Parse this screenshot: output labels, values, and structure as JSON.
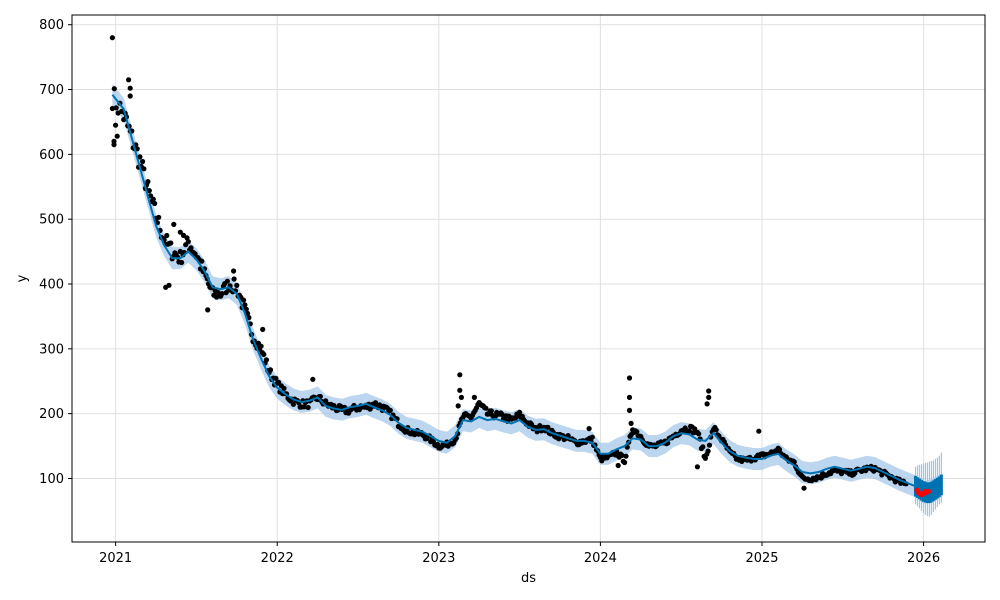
{
  "chart_data": {
    "type": "line",
    "xlabel": "ds",
    "ylabel": "y",
    "grid": true,
    "xlim": [
      2020.73,
      2026.38
    ],
    "ylim": [
      2,
      815
    ],
    "x_ticks": [
      2021,
      2022,
      2023,
      2024,
      2025,
      2026
    ],
    "x_tick_labels": [
      "2021",
      "2022",
      "2023",
      "2024",
      "2025",
      "2026"
    ],
    "y_ticks": [
      100,
      200,
      300,
      400,
      500,
      600,
      700,
      800
    ],
    "y_tick_labels": [
      "100",
      "200",
      "300",
      "400",
      "500",
      "600",
      "700",
      "800"
    ],
    "colors": {
      "observed": "#000000",
      "forecast_line": "#0072B2",
      "uncertainty_band": "#9fc5e8",
      "recent_actuals": "#ff0000",
      "grid": "#e0e0e0"
    },
    "observed_trend": [
      [
        2020.98,
        690
      ],
      [
        2021.05,
        660
      ],
      [
        2021.1,
        625
      ],
      [
        2021.15,
        590
      ],
      [
        2021.2,
        545
      ],
      [
        2021.25,
        505
      ],
      [
        2021.3,
        470
      ],
      [
        2021.35,
        450
      ],
      [
        2021.4,
        440
      ],
      [
        2021.45,
        465
      ],
      [
        2021.5,
        445
      ],
      [
        2021.55,
        415
      ],
      [
        2021.6,
        385
      ],
      [
        2021.65,
        385
      ],
      [
        2021.7,
        400
      ],
      [
        2021.75,
        395
      ],
      [
        2021.8,
        360
      ],
      [
        2021.85,
        320
      ],
      [
        2021.9,
        300
      ],
      [
        2021.95,
        265
      ],
      [
        2022.0,
        245
      ],
      [
        2022.05,
        230
      ],
      [
        2022.1,
        220
      ],
      [
        2022.15,
        215
      ],
      [
        2022.2,
        215
      ],
      [
        2022.25,
        225
      ],
      [
        2022.3,
        215
      ],
      [
        2022.35,
        210
      ],
      [
        2022.4,
        205
      ],
      [
        2022.45,
        205
      ],
      [
        2022.5,
        210
      ],
      [
        2022.55,
        210
      ],
      [
        2022.6,
        215
      ],
      [
        2022.65,
        210
      ],
      [
        2022.7,
        200
      ],
      [
        2022.75,
        185
      ],
      [
        2022.8,
        175
      ],
      [
        2022.85,
        170
      ],
      [
        2022.9,
        168
      ],
      [
        2022.95,
        160
      ],
      [
        2023.0,
        150
      ],
      [
        2023.05,
        152
      ],
      [
        2023.1,
        160
      ],
      [
        2023.15,
        195
      ],
      [
        2023.2,
        195
      ],
      [
        2023.25,
        215
      ],
      [
        2023.3,
        200
      ],
      [
        2023.35,
        198
      ],
      [
        2023.4,
        195
      ],
      [
        2023.45,
        190
      ],
      [
        2023.5,
        198
      ],
      [
        2023.55,
        185
      ],
      [
        2023.6,
        175
      ],
      [
        2023.65,
        180
      ],
      [
        2023.7,
        170
      ],
      [
        2023.75,
        165
      ],
      [
        2023.8,
        162
      ],
      [
        2023.85,
        155
      ],
      [
        2023.9,
        158
      ],
      [
        2023.95,
        160
      ],
      [
        2024.0,
        130
      ],
      [
        2024.05,
        133
      ],
      [
        2024.1,
        140
      ],
      [
        2024.15,
        128
      ],
      [
        2024.2,
        178
      ],
      [
        2024.25,
        165
      ],
      [
        2024.3,
        150
      ],
      [
        2024.35,
        150
      ],
      [
        2024.4,
        155
      ],
      [
        2024.45,
        165
      ],
      [
        2024.5,
        175
      ],
      [
        2024.55,
        178
      ],
      [
        2024.6,
        172
      ],
      [
        2024.65,
        130
      ],
      [
        2024.7,
        178
      ],
      [
        2024.75,
        160
      ],
      [
        2024.8,
        140
      ],
      [
        2024.85,
        130
      ],
      [
        2024.9,
        128
      ],
      [
        2024.95,
        132
      ],
      [
        2025.0,
        135
      ],
      [
        2025.05,
        138
      ],
      [
        2025.1,
        145
      ],
      [
        2025.15,
        130
      ],
      [
        2025.2,
        125
      ],
      [
        2025.25,
        100
      ],
      [
        2025.3,
        100
      ],
      [
        2025.35,
        102
      ],
      [
        2025.4,
        108
      ],
      [
        2025.45,
        112
      ],
      [
        2025.5,
        110
      ],
      [
        2025.55,
        108
      ],
      [
        2025.6,
        112
      ],
      [
        2025.65,
        115
      ],
      [
        2025.7,
        115
      ],
      [
        2025.75,
        108
      ],
      [
        2025.8,
        102
      ],
      [
        2025.85,
        95
      ],
      [
        2025.9,
        90
      ]
    ],
    "outliers": [
      [
        2020.98,
        780
      ],
      [
        2020.99,
        620
      ],
      [
        2020.99,
        615
      ],
      [
        2021.0,
        645
      ],
      [
        2021.01,
        628
      ],
      [
        2021.08,
        715
      ],
      [
        2021.09,
        702
      ],
      [
        2021.09,
        690
      ],
      [
        2021.36,
        492
      ],
      [
        2021.4,
        480
      ],
      [
        2021.42,
        475
      ],
      [
        2021.31,
        395
      ],
      [
        2021.33,
        398
      ],
      [
        2021.57,
        360
      ],
      [
        2021.73,
        420
      ],
      [
        2021.91,
        330
      ],
      [
        2022.22,
        253
      ],
      [
        2023.13,
        260
      ],
      [
        2023.13,
        236
      ],
      [
        2023.14,
        225
      ],
      [
        2023.12,
        212
      ],
      [
        2023.22,
        225
      ],
      [
        2024.18,
        255
      ],
      [
        2024.18,
        225
      ],
      [
        2024.18,
        205
      ],
      [
        2024.19,
        185
      ],
      [
        2024.67,
        235
      ],
      [
        2024.67,
        225
      ],
      [
        2024.66,
        215
      ],
      [
        2024.6,
        118
      ],
      [
        2024.98,
        173
      ],
      [
        2025.26,
        85
      ],
      [
        2024.11,
        120
      ],
      [
        2023.93,
        177
      ]
    ],
    "forecast_line": [
      [
        2020.98,
        692
      ],
      [
        2021.05,
        670
      ],
      [
        2021.1,
        625
      ],
      [
        2021.15,
        580
      ],
      [
        2021.2,
        535
      ],
      [
        2021.25,
        490
      ],
      [
        2021.3,
        460
      ],
      [
        2021.35,
        440
      ],
      [
        2021.4,
        440
      ],
      [
        2021.45,
        450
      ],
      [
        2021.5,
        438
      ],
      [
        2021.55,
        420
      ],
      [
        2021.6,
        395
      ],
      [
        2021.65,
        392
      ],
      [
        2021.7,
        395
      ],
      [
        2021.75,
        385
      ],
      [
        2021.8,
        355
      ],
      [
        2021.85,
        315
      ],
      [
        2021.9,
        285
      ],
      [
        2021.95,
        258
      ],
      [
        2022.0,
        240
      ],
      [
        2022.05,
        230
      ],
      [
        2022.1,
        222
      ],
      [
        2022.15,
        218
      ],
      [
        2022.2,
        220
      ],
      [
        2022.25,
        225
      ],
      [
        2022.3,
        212
      ],
      [
        2022.35,
        208
      ],
      [
        2022.4,
        206
      ],
      [
        2022.45,
        210
      ],
      [
        2022.5,
        212
      ],
      [
        2022.55,
        215
      ],
      [
        2022.6,
        210
      ],
      [
        2022.65,
        205
      ],
      [
        2022.7,
        198
      ],
      [
        2022.75,
        186
      ],
      [
        2022.8,
        178
      ],
      [
        2022.85,
        175
      ],
      [
        2022.9,
        172
      ],
      [
        2022.95,
        165
      ],
      [
        2023.0,
        158
      ],
      [
        2023.05,
        155
      ],
      [
        2023.1,
        165
      ],
      [
        2023.15,
        190
      ],
      [
        2023.2,
        188
      ],
      [
        2023.25,
        195
      ],
      [
        2023.3,
        190
      ],
      [
        2023.35,
        192
      ],
      [
        2023.4,
        188
      ],
      [
        2023.45,
        185
      ],
      [
        2023.5,
        190
      ],
      [
        2023.55,
        180
      ],
      [
        2023.6,
        175
      ],
      [
        2023.65,
        176
      ],
      [
        2023.7,
        170
      ],
      [
        2023.75,
        166
      ],
      [
        2023.8,
        162
      ],
      [
        2023.85,
        158
      ],
      [
        2023.9,
        158
      ],
      [
        2023.95,
        155
      ],
      [
        2024.0,
        138
      ],
      [
        2024.05,
        138
      ],
      [
        2024.1,
        145
      ],
      [
        2024.15,
        150
      ],
      [
        2024.2,
        162
      ],
      [
        2024.25,
        160
      ],
      [
        2024.3,
        150
      ],
      [
        2024.35,
        150
      ],
      [
        2024.4,
        155
      ],
      [
        2024.45,
        165
      ],
      [
        2024.5,
        170
      ],
      [
        2024.55,
        168
      ],
      [
        2024.6,
        160
      ],
      [
        2024.65,
        158
      ],
      [
        2024.7,
        170
      ],
      [
        2024.75,
        155
      ],
      [
        2024.8,
        142
      ],
      [
        2024.85,
        135
      ],
      [
        2024.9,
        132
      ],
      [
        2024.95,
        130
      ],
      [
        2025.0,
        130
      ],
      [
        2025.05,
        135
      ],
      [
        2025.1,
        138
      ],
      [
        2025.15,
        128
      ],
      [
        2025.2,
        120
      ],
      [
        2025.25,
        110
      ],
      [
        2025.3,
        108
      ],
      [
        2025.35,
        110
      ],
      [
        2025.4,
        115
      ],
      [
        2025.45,
        118
      ],
      [
        2025.5,
        115
      ],
      [
        2025.55,
        112
      ],
      [
        2025.6,
        115
      ],
      [
        2025.65,
        118
      ],
      [
        2025.7,
        116
      ],
      [
        2025.75,
        110
      ],
      [
        2025.8,
        104
      ],
      [
        2025.85,
        98
      ],
      [
        2025.9,
        93
      ],
      [
        2025.95,
        88
      ],
      [
        2026.0,
        78
      ],
      [
        2026.05,
        82
      ],
      [
        2026.1,
        90
      ]
    ],
    "uncertainty_halfwidth": 17,
    "forecast_samples": {
      "x_start": 2025.95,
      "x_end": 2026.11,
      "count": 14,
      "center": [
        88,
        86,
        84,
        82,
        80,
        79,
        78,
        78,
        79,
        81,
        83,
        85,
        87,
        90
      ],
      "lower": [
        60,
        57,
        54,
        50,
        47,
        44,
        42,
        41,
        44,
        48,
        52,
        56,
        60,
        62
      ],
      "upper": [
        118,
        120,
        121,
        122,
        123,
        124,
        125,
        126,
        127,
        128,
        130,
        132,
        135,
        140
      ]
    },
    "recent_actuals": [
      [
        2025.96,
        82
      ],
      [
        2025.97,
        78
      ],
      [
        2025.98,
        76
      ],
      [
        2025.99,
        75
      ],
      [
        2026.0,
        77
      ],
      [
        2026.01,
        80
      ],
      [
        2026.02,
        79
      ],
      [
        2026.03,
        80
      ]
    ]
  }
}
